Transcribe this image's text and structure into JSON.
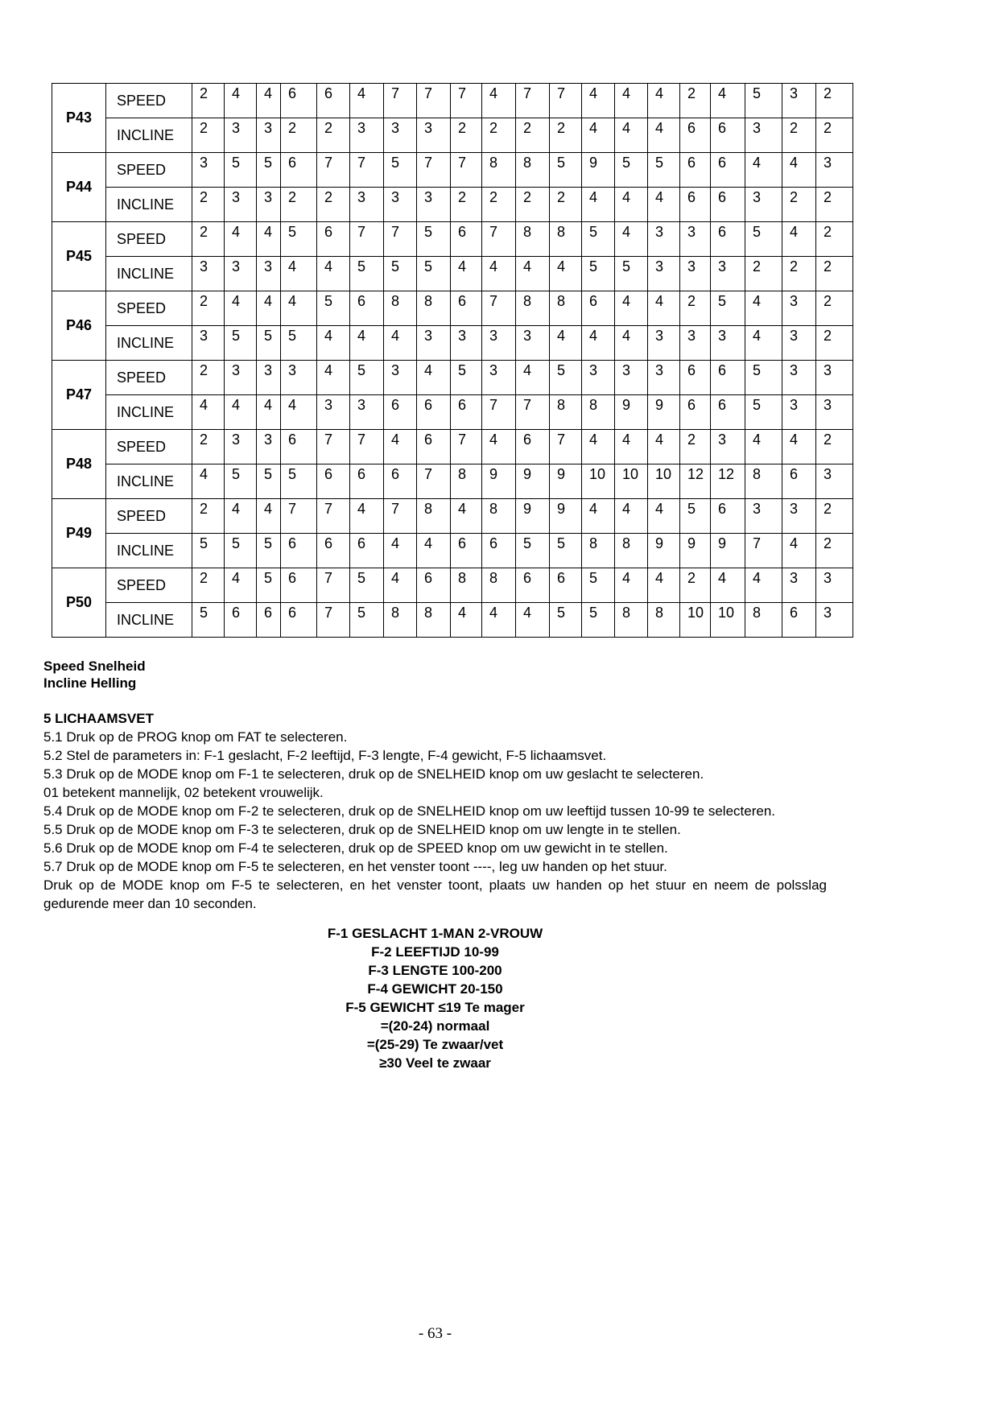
{
  "table": {
    "speed_label": "SPEED",
    "incline_label": "INCLINE",
    "programs": [
      {
        "name": "P43",
        "speed": [
          2,
          4,
          4,
          6,
          6,
          4,
          7,
          7,
          7,
          4,
          7,
          7,
          4,
          4,
          4,
          2,
          4,
          5,
          3,
          2
        ],
        "incline": [
          2,
          3,
          3,
          2,
          2,
          3,
          3,
          3,
          2,
          2,
          2,
          2,
          4,
          4,
          4,
          6,
          6,
          3,
          2,
          2
        ]
      },
      {
        "name": "P44",
        "speed": [
          3,
          5,
          5,
          6,
          7,
          7,
          5,
          7,
          7,
          8,
          8,
          5,
          9,
          5,
          5,
          6,
          6,
          4,
          4,
          3
        ],
        "incline": [
          2,
          3,
          3,
          2,
          2,
          3,
          3,
          3,
          2,
          2,
          2,
          2,
          4,
          4,
          4,
          6,
          6,
          3,
          2,
          2
        ]
      },
      {
        "name": "P45",
        "speed": [
          2,
          4,
          4,
          5,
          6,
          7,
          7,
          5,
          6,
          7,
          8,
          8,
          5,
          4,
          3,
          3,
          6,
          5,
          4,
          2
        ],
        "incline": [
          3,
          3,
          3,
          4,
          4,
          5,
          5,
          5,
          4,
          4,
          4,
          4,
          5,
          5,
          3,
          3,
          3,
          2,
          2,
          2
        ]
      },
      {
        "name": "P46",
        "speed": [
          2,
          4,
          4,
          4,
          5,
          6,
          8,
          8,
          6,
          7,
          8,
          8,
          6,
          4,
          4,
          2,
          5,
          4,
          3,
          2
        ],
        "incline": [
          3,
          5,
          5,
          5,
          4,
          4,
          4,
          3,
          3,
          3,
          3,
          4,
          4,
          4,
          3,
          3,
          3,
          4,
          3,
          2
        ]
      },
      {
        "name": "P47",
        "speed": [
          2,
          3,
          3,
          3,
          4,
          5,
          3,
          4,
          5,
          3,
          4,
          5,
          3,
          3,
          3,
          6,
          6,
          5,
          3,
          3
        ],
        "incline": [
          4,
          4,
          4,
          4,
          3,
          3,
          6,
          6,
          6,
          7,
          7,
          8,
          8,
          9,
          9,
          6,
          6,
          5,
          3,
          3
        ]
      },
      {
        "name": "P48",
        "speed": [
          2,
          3,
          3,
          6,
          7,
          7,
          4,
          6,
          7,
          4,
          6,
          7,
          4,
          4,
          4,
          2,
          3,
          4,
          4,
          2
        ],
        "incline": [
          4,
          5,
          5,
          5,
          6,
          6,
          6,
          7,
          8,
          9,
          9,
          9,
          10,
          10,
          10,
          12,
          12,
          8,
          6,
          3
        ]
      },
      {
        "name": "P49",
        "speed": [
          2,
          4,
          4,
          7,
          7,
          4,
          7,
          8,
          4,
          8,
          9,
          9,
          4,
          4,
          4,
          5,
          6,
          3,
          3,
          2
        ],
        "incline": [
          5,
          5,
          5,
          6,
          6,
          6,
          4,
          4,
          6,
          6,
          5,
          5,
          8,
          8,
          9,
          9,
          9,
          7,
          4,
          2
        ]
      },
      {
        "name": "P50",
        "speed": [
          2,
          4,
          5,
          6,
          7,
          5,
          4,
          6,
          8,
          8,
          6,
          6,
          5,
          4,
          4,
          2,
          4,
          4,
          3,
          3
        ],
        "incline": [
          5,
          6,
          6,
          6,
          7,
          5,
          8,
          8,
          4,
          4,
          4,
          5,
          5,
          8,
          8,
          10,
          10,
          8,
          6,
          3
        ]
      }
    ]
  },
  "legend": {
    "speed": "Speed Snelheid",
    "incline": "Incline Helling"
  },
  "section": {
    "heading": "5 LICHAAMSVET",
    "paragraphs": [
      {
        "text": "5.1 Druk op de PROG knop om FAT te selecteren.",
        "justify": false
      },
      {
        "text": "5.2 Stel de parameters in: F-1 geslacht, F-2 leeftijd, F-3 lengte, F-4 gewicht, F-5 lichaamsvet.",
        "justify": false
      },
      {
        "text": "5.3 Druk op de MODE knop om F-1 te selecteren, druk op de SNELHEID knop om uw geslacht te selecteren.",
        "justify": false
      },
      {
        "text": "01 betekent mannelijk, 02 betekent vrouwelijk.",
        "justify": false
      },
      {
        "text": "5.4 Druk op de MODE knop om F-2 te selecteren, druk op de SNELHEID knop om uw leeftijd tussen 10-99 te selecteren.",
        "justify": true
      },
      {
        "text": "5.5 Druk op de MODE knop om F-3 te selecteren, druk op de SNELHEID knop om uw lengte in te stellen.",
        "justify": false
      },
      {
        "text": "5.6 Druk op de MODE knop om F-4 te selecteren, druk op de SPEED knop om uw gewicht in te stellen.",
        "justify": false
      },
      {
        "text": "5.7 Druk op de MODE knop om F-5 te selecteren, en het venster toont ----, leg uw handen op het stuur.",
        "justify": false
      },
      {
        "text": "Druk op de MODE knop om F-5 te selecteren, en het venster toont, plaats uw handen op het stuur en neem de polsslag gedurende meer dan 10 seconden.",
        "justify": true
      }
    ]
  },
  "centered_block": [
    "F-1 GESLACHT 1-MAN 2-VROUW",
    "F-2 LEEFTIJD 10-99",
    "F-3 LENGTE 100-200",
    "F-4 GEWICHT 20-150",
    "F-5 GEWICHT ≤19 Te mager",
    "=(20-24) normaal",
    "=(25-29) Te zwaar/vet",
    "≥30 Veel te zwaar"
  ],
  "page_number": "- 63 -"
}
